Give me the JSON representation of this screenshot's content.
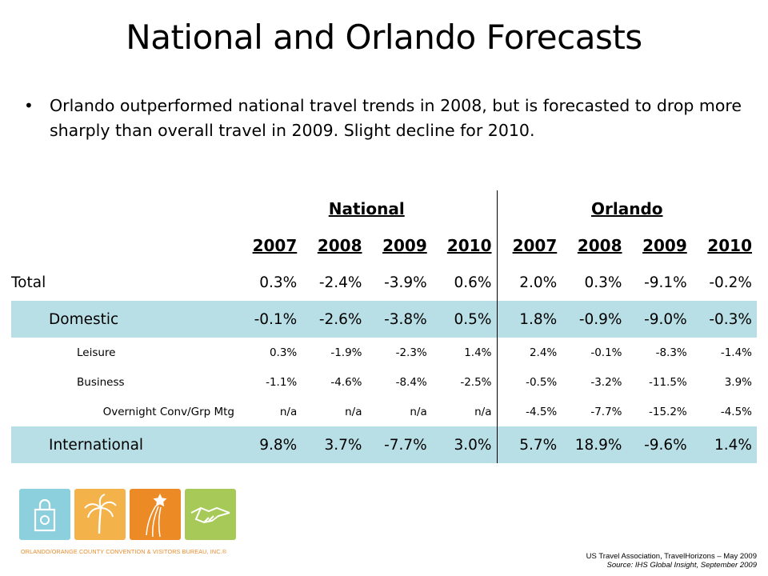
{
  "title": "National and Orlando Forecasts",
  "bullet": "Orlando outperformed national travel trends in 2008, but is forecasted to drop more sharply than overall travel in 2009. Slight decline for 2010.",
  "table": {
    "groups": [
      "National",
      "Orlando"
    ],
    "years": [
      "2007",
      "2008",
      "2009",
      "2010",
      "2007",
      "2008",
      "2009",
      "2010"
    ],
    "rows": [
      {
        "label": "Total",
        "values": [
          "0.3%",
          "-2.4%",
          "-3.9%",
          "0.6%",
          "2.0%",
          "0.3%",
          "-9.1%",
          "-0.2%"
        ]
      },
      {
        "label": "Domestic",
        "values": [
          "-0.1%",
          "-2.6%",
          "-3.8%",
          "0.5%",
          "1.8%",
          "-0.9%",
          "-9.0%",
          "-0.3%"
        ]
      },
      {
        "label": "Leisure",
        "values": [
          "0.3%",
          "-1.9%",
          "-2.3%",
          "1.4%",
          "2.4%",
          "-0.1%",
          "-8.3%",
          "-1.4%"
        ]
      },
      {
        "label": "Business",
        "values": [
          "-1.1%",
          "-4.6%",
          "-8.4%",
          "-2.5%",
          "-0.5%",
          "-3.2%",
          "-11.5%",
          "3.9%"
        ]
      },
      {
        "label": "Overnight Conv/Grp Mtg",
        "values": [
          "n/a",
          "n/a",
          "n/a",
          "n/a",
          "-4.5%",
          "-7.7%",
          "-15.2%",
          "-4.5%"
        ]
      },
      {
        "label": "International",
        "values": [
          "9.8%",
          "3.7%",
          "-7.7%",
          "3.0%",
          "5.7%",
          "18.9%",
          "-9.6%",
          "1.4%"
        ]
      }
    ]
  },
  "logo": {
    "text": "ORLANDO/ORANGE COUNTY CONVENTION & VISITORS BUREAU, INC.®",
    "tile_colors": [
      "#8ccfdd",
      "#f3b34a",
      "#ec8a25",
      "#a6c957"
    ],
    "icons": [
      "shopping-bag-icon",
      "palm-tree-icon",
      "shooting-star-icon",
      "handshake-icon"
    ]
  },
  "source": {
    "line1": "US Travel Association, TravelHorizons – May 2009",
    "line2": "Source: IHS Global Insight, September 2009"
  },
  "colors": {
    "row_shade": "#b9dfe6"
  }
}
